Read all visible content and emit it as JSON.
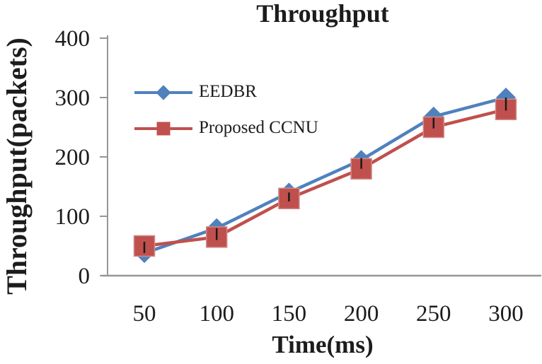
{
  "chart_data": {
    "type": "line",
    "title": "Throughput",
    "xlabel": "Time(ms)",
    "ylabel": "Throughput(packets)",
    "x": [
      50,
      100,
      150,
      200,
      250,
      300
    ],
    "series": [
      {
        "name": "EEDBR",
        "color": "#4F81BD",
        "marker": "diamond",
        "values": [
          38,
          80,
          140,
          195,
          268,
          300
        ]
      },
      {
        "name": "Proposed CCNU",
        "color": "#C0504D",
        "marker": "square",
        "marker_edge": "#D08A88",
        "values": [
          50,
          65,
          130,
          180,
          250,
          280
        ]
      }
    ],
    "error_bars": {
      "color": "#1a1a1a",
      "low": [
        38,
        60,
        125,
        180,
        248,
        278
      ],
      "high": [
        57,
        80,
        140,
        198,
        266,
        300
      ]
    },
    "xlim_categories": true,
    "ylim": [
      0,
      400
    ],
    "yticks": [
      0,
      100,
      200,
      300,
      400
    ],
    "grid": false,
    "legend_position": "upper-left-inside",
    "axis_color": "#969696",
    "text_color": "#1c1c1c"
  }
}
